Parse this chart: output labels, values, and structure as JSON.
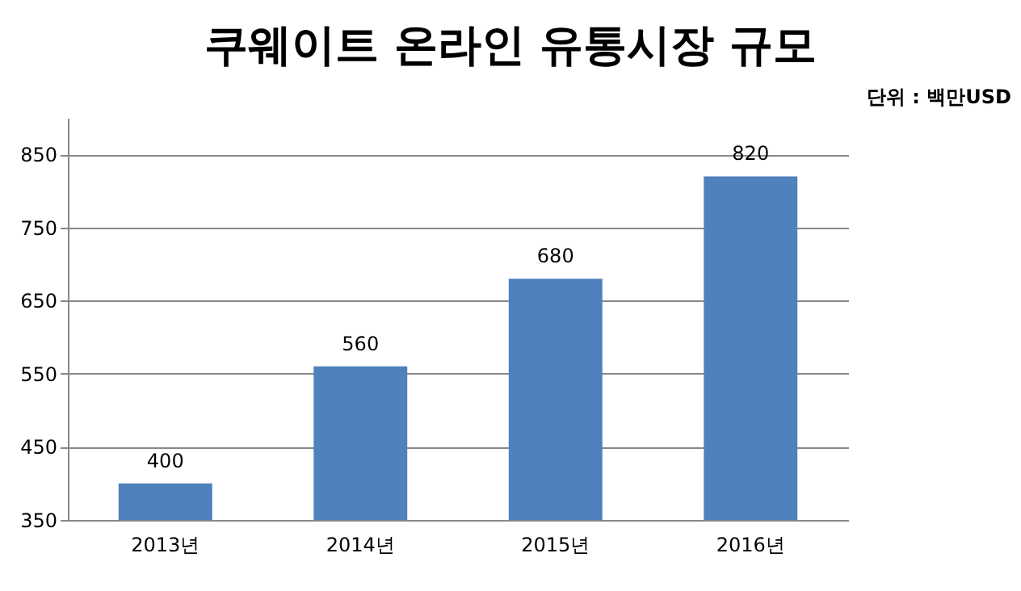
{
  "chart_data": {
    "type": "bar",
    "title": "쿠웨이트 온라인 유통시장 규모",
    "annotations": [
      "단위 : 백만USD"
    ],
    "categories": [
      "2013년",
      "2014년",
      "2015년",
      "2016년"
    ],
    "values": [
      400,
      560,
      680,
      820
    ],
    "color": "#4f81bd",
    "ylim": [
      350,
      900
    ],
    "yticks": [
      350,
      450,
      550,
      650,
      750,
      850
    ],
    "grid": "y",
    "data_labels": true
  }
}
